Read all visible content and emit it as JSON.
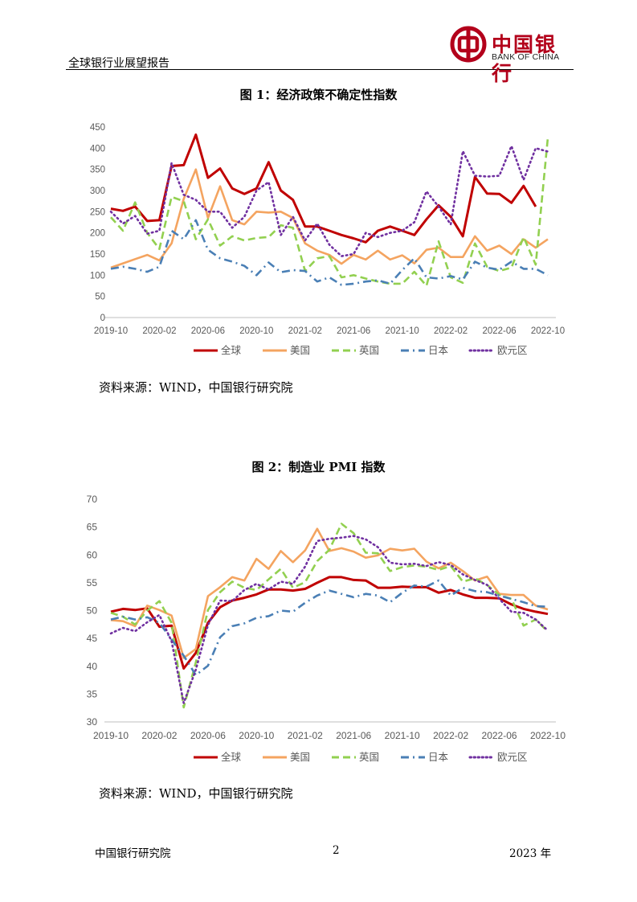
{
  "header": {
    "title": "全球银行业展望报告",
    "logo_cn": "中国银行",
    "logo_en": "BANK OF CHINA",
    "brand_color": "#b3001b"
  },
  "figures": [
    {
      "title": "图 1：经济政策不确定性指数",
      "source": "资料来源：WIND，中国银行研究院"
    },
    {
      "title": "图 2：制造业 PMI 指数",
      "source": "资料来源：WIND，中国银行研究院"
    }
  ],
  "footer": {
    "left": "中国银行研究院",
    "page": "2",
    "right": "2023 年"
  },
  "chart_data": [
    {
      "type": "line",
      "title": "图 1：经济政策不确定性指数",
      "x": [
        "2019-10",
        "2019-11",
        "2019-12",
        "2020-01",
        "2020-02",
        "2020-03",
        "2020-04",
        "2020-05",
        "2020-06",
        "2020-07",
        "2020-08",
        "2020-09",
        "2020-10",
        "2020-11",
        "2020-12",
        "2021-01",
        "2021-02",
        "2021-03",
        "2021-04",
        "2021-05",
        "2021-06",
        "2021-07",
        "2021-08",
        "2021-09",
        "2021-10",
        "2021-11",
        "2021-12",
        "2022-01",
        "2022-02",
        "2022-03",
        "2022-04",
        "2022-05",
        "2022-06",
        "2022-07",
        "2022-08",
        "2022-09",
        "2022-10"
      ],
      "xticks": [
        "2019-10",
        "2020-02",
        "2020-06",
        "2020-10",
        "2021-02",
        "2021-06",
        "2021-10",
        "2022-02",
        "2022-06",
        "2022-10"
      ],
      "ylim": [
        0,
        450
      ],
      "yticks": [
        0,
        50,
        100,
        150,
        200,
        250,
        300,
        350,
        400,
        450
      ],
      "legend_position": "bottom",
      "grid": false,
      "series": [
        {
          "name": "全球",
          "color": "#c00000",
          "dash": "solid",
          "values": [
            257,
            252,
            262,
            228,
            230,
            358,
            360,
            432,
            330,
            352,
            305,
            292,
            305,
            367,
            300,
            278,
            215,
            215,
            205,
            195,
            187,
            178,
            205,
            215,
            205,
            195,
            232,
            265,
            238,
            192,
            332,
            293,
            292,
            271,
            311,
            262,
            null
          ]
        },
        {
          "name": "美国",
          "color": "#f4a460",
          "dash": "solid",
          "values": [
            118,
            128,
            138,
            148,
            135,
            175,
            280,
            350,
            235,
            310,
            230,
            220,
            250,
            248,
            250,
            235,
            175,
            158,
            148,
            127,
            148,
            137,
            158,
            137,
            147,
            128,
            160,
            165,
            143,
            143,
            192,
            158,
            170,
            150,
            185,
            165,
            185
          ]
        },
        {
          "name": "英国",
          "color": "#92d050",
          "dash": "dash",
          "values": [
            237,
            205,
            272,
            200,
            162,
            285,
            275,
            185,
            232,
            170,
            192,
            182,
            188,
            190,
            218,
            212,
            110,
            140,
            145,
            95,
            100,
            92,
            85,
            80,
            80,
            108,
            75,
            180,
            95,
            82,
            175,
            120,
            110,
            118,
            190,
            125,
            425
          ]
        },
        {
          "name": "日本",
          "color": "#4a7fb5",
          "dash": "dashdot",
          "values": [
            115,
            120,
            115,
            108,
            120,
            205,
            185,
            230,
            160,
            140,
            132,
            122,
            100,
            130,
            107,
            112,
            110,
            85,
            95,
            77,
            80,
            85,
            88,
            80,
            112,
            140,
            95,
            92,
            98,
            90,
            132,
            118,
            113,
            132,
            115,
            115,
            100
          ]
        },
        {
          "name": "欧元区",
          "color": "#7030a0",
          "dash": "dot",
          "values": [
            250,
            222,
            240,
            198,
            205,
            365,
            290,
            278,
            250,
            250,
            212,
            238,
            300,
            320,
            195,
            238,
            182,
            222,
            172,
            145,
            150,
            200,
            190,
            200,
            205,
            225,
            298,
            262,
            220,
            393,
            335,
            333,
            335,
            405,
            325,
            400,
            392
          ]
        }
      ]
    },
    {
      "type": "line",
      "title": "图 2：制造业 PMI 指数",
      "x": [
        "2019-10",
        "2019-11",
        "2019-12",
        "2020-01",
        "2020-02",
        "2020-03",
        "2020-04",
        "2020-05",
        "2020-06",
        "2020-07",
        "2020-08",
        "2020-09",
        "2020-10",
        "2020-11",
        "2020-12",
        "2021-01",
        "2021-02",
        "2021-03",
        "2021-04",
        "2021-05",
        "2021-06",
        "2021-07",
        "2021-08",
        "2021-09",
        "2021-10",
        "2021-11",
        "2021-12",
        "2022-01",
        "2022-02",
        "2022-03",
        "2022-04",
        "2022-05",
        "2022-06",
        "2022-07",
        "2022-08",
        "2022-09",
        "2022-10"
      ],
      "xticks": [
        "2019-10",
        "2020-02",
        "2020-06",
        "2020-10",
        "2021-02",
        "2021-06",
        "2021-10",
        "2022-02",
        "2022-06",
        "2022-10"
      ],
      "ylim": [
        30,
        70
      ],
      "yticks": [
        30,
        35,
        40,
        45,
        50,
        55,
        60,
        65,
        70
      ],
      "legend_position": "bottom",
      "grid": false,
      "series": [
        {
          "name": "全球",
          "color": "#c00000",
          "dash": "solid",
          "values": [
            49.8,
            50.3,
            50.1,
            50.4,
            47.1,
            47.3,
            39.6,
            42.4,
            47.8,
            50.6,
            51.8,
            52.3,
            52.9,
            53.8,
            53.8,
            53.6,
            53.9,
            55.0,
            56.0,
            56.0,
            55.5,
            55.4,
            54.1,
            54.1,
            54.3,
            54.2,
            54.2,
            53.2,
            53.7,
            52.9,
            52.3,
            52.3,
            52.2,
            51.1,
            50.3,
            49.8,
            49.4
          ]
        },
        {
          "name": "美国",
          "color": "#f4a460",
          "dash": "solid",
          "values": [
            48.3,
            48.1,
            47.2,
            50.9,
            50.1,
            49.1,
            41.5,
            43.1,
            52.6,
            54.2,
            56.0,
            55.4,
            59.3,
            57.5,
            60.7,
            58.7,
            60.8,
            64.7,
            60.7,
            61.2,
            60.6,
            59.5,
            59.9,
            61.1,
            60.8,
            61.1,
            58.8,
            57.6,
            58.6,
            57.1,
            55.4,
            56.1,
            53.0,
            52.8,
            52.8,
            50.9,
            50.2
          ]
        },
        {
          "name": "英国",
          "color": "#92d050",
          "dash": "dash",
          "values": [
            49.6,
            48.9,
            47.5,
            50.0,
            51.7,
            47.8,
            32.6,
            40.7,
            50.1,
            53.3,
            55.2,
            54.1,
            53.7,
            55.6,
            57.5,
            54.1,
            55.1,
            58.9,
            60.9,
            65.6,
            63.9,
            60.4,
            60.3,
            57.1,
            57.8,
            58.1,
            57.9,
            57.3,
            58.0,
            55.2,
            55.8,
            54.6,
            52.8,
            52.1,
            47.3,
            48.4,
            46.2
          ]
        },
        {
          "name": "日本",
          "color": "#4a7fb5",
          "dash": "dashdot",
          "values": [
            48.4,
            48.9,
            48.4,
            48.8,
            47.8,
            44.8,
            41.9,
            38.4,
            40.1,
            45.2,
            47.2,
            47.7,
            48.7,
            49.0,
            50.0,
            49.8,
            51.4,
            52.7,
            53.6,
            53.0,
            52.4,
            53.0,
            52.7,
            51.5,
            53.2,
            54.5,
            54.3,
            55.4,
            52.7,
            54.1,
            53.5,
            53.3,
            52.7,
            52.1,
            51.5,
            50.8,
            50.7
          ]
        },
        {
          "name": "欧元区",
          "color": "#7030a0",
          "dash": "dot",
          "values": [
            45.9,
            46.9,
            46.3,
            47.9,
            49.2,
            44.5,
            33.4,
            39.4,
            47.4,
            51.8,
            51.7,
            53.7,
            54.8,
            53.8,
            55.2,
            54.8,
            57.9,
            62.5,
            62.9,
            63.1,
            63.4,
            62.8,
            61.4,
            58.6,
            58.3,
            58.4,
            58.0,
            58.7,
            58.2,
            56.5,
            55.5,
            54.6,
            52.1,
            49.8,
            49.6,
            48.4,
            46.4
          ]
        }
      ]
    }
  ]
}
